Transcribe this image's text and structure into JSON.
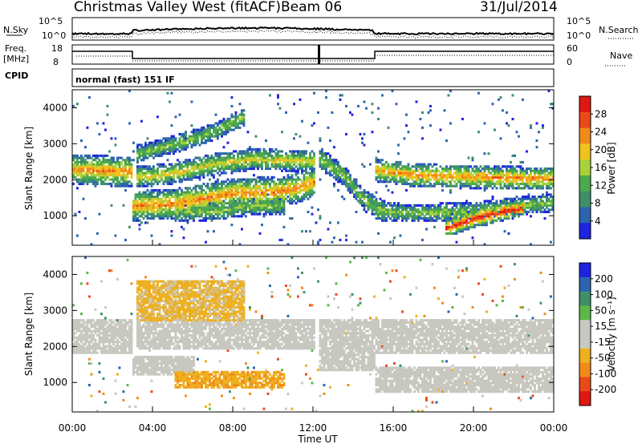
{
  "header": {
    "station": "Christmas Valley West (fitACF)",
    "beam": "Beam 06",
    "date": "31/Jul/2014"
  },
  "top_panels": {
    "nsky_label": "N.Sky",
    "nsearch_label": "N.Search",
    "noise_ticks_left": [
      "10^5",
      "10^0"
    ],
    "noise_ticks_right": [
      "10^5",
      "10^0"
    ],
    "freq_label_1": "Freq.",
    "freq_label_2": "[MHz]",
    "freq_ticks": [
      "18",
      "8"
    ],
    "nave_label": "Nave",
    "nave_ticks": [
      "60",
      "0"
    ],
    "cpid_label": "CPID",
    "cpid_text": "normal (fast) 151 IF"
  },
  "colors": {
    "power_scale": [
      "#1e24e0",
      "#2c64b0",
      "#3f8f6a",
      "#4caa4c",
      "#a8d23a",
      "#f2c21e",
      "#f08a1a",
      "#ea4a18",
      "#e01812"
    ],
    "velocity_scale": [
      "#1e24e0",
      "#2c64b0",
      "#3f8f6a",
      "#5ab848",
      "#c8c8c0",
      "#c8c8c0",
      "#eeb020",
      "#f08a1a",
      "#ea4a18",
      "#e01812"
    ]
  },
  "chart_data": [
    {
      "type": "heatmap",
      "panel": "power",
      "ylabel": "Slant Range [km]",
      "colorbar_label": "Power [dB]",
      "colorbar_ticks": [
        "28",
        "24",
        "20",
        "16",
        "12",
        "8",
        "4"
      ],
      "x_ticks": [
        "00:00",
        "04:00",
        "08:00",
        "12:00",
        "16:00",
        "20:00",
        "00:00"
      ],
      "y_ticks": [
        "4000",
        "3000",
        "2000",
        "1000"
      ],
      "xlim_hours": [
        0,
        24
      ],
      "ylim_km": [
        180,
        4500
      ],
      "clim": [
        0,
        30
      ],
      "bands": [
        {
          "t": [
            0,
            3,
            3,
            5,
            8,
            10.5,
            12
          ],
          "r": [
            2250,
            2200,
            1250,
            1300,
            1600,
            1650,
            1900
          ],
          "width_km": 420,
          "peak_db": 22
        },
        {
          "t": [
            3.2,
            5,
            7,
            9,
            11,
            12
          ],
          "r": [
            2050,
            2150,
            2400,
            2550,
            2500,
            2500
          ],
          "width_km": 300,
          "peak_db": 18
        },
        {
          "t": [
            3.2,
            5,
            7,
            8.5
          ],
          "r": [
            2700,
            2950,
            3300,
            3700
          ],
          "width_km": 250,
          "peak_db": 14
        },
        {
          "t": [
            5,
            7,
            9,
            10.5
          ],
          "r": [
            1050,
            1100,
            1250,
            1250
          ],
          "width_km": 250,
          "peak_db": 14
        },
        {
          "t": [
            12.2,
            13.5,
            14.5,
            15.5
          ],
          "r": [
            2600,
            2100,
            1400,
            1100
          ],
          "width_km": 300,
          "peak_db": 14
        },
        {
          "t": [
            15,
            17,
            20,
            24
          ],
          "r": [
            2250,
            2100,
            2050,
            2000
          ],
          "width_km": 320,
          "peak_db": 22
        },
        {
          "t": [
            15,
            17,
            20,
            24
          ],
          "r": [
            1100,
            1050,
            1100,
            1350
          ],
          "width_km": 250,
          "peak_db": 14
        },
        {
          "t": [
            18.5,
            20,
            21.5,
            22.5
          ],
          "r": [
            600,
            900,
            1100,
            1200
          ],
          "width_km": 250,
          "peak_db": 28
        }
      ]
    },
    {
      "type": "heatmap",
      "panel": "velocity",
      "ylabel": "Slant Range [km]",
      "colorbar_label": "Velocity [m s⁻¹]",
      "colorbar_ticks": [
        "200",
        "100",
        "50",
        "15",
        "-15",
        "-50",
        "-100",
        "-200"
      ],
      "x_ticks": [
        "00:00",
        "04:00",
        "08:00",
        "12:00",
        "16:00",
        "20:00",
        "00:00"
      ],
      "xlabel": "Time UT",
      "y_ticks": [
        "4000",
        "3000",
        "2000",
        "1000"
      ],
      "xlim_hours": [
        0,
        24
      ],
      "ylim_km": [
        180,
        4500
      ],
      "clim": [
        -250,
        250
      ],
      "regions": [
        {
          "t": [
            0,
            3
          ],
          "r": [
            1800,
            2700
          ],
          "v": 0
        },
        {
          "t": [
            3,
            6
          ],
          "r": [
            1200,
            1700
          ],
          "v": 0
        },
        {
          "t": [
            3.2,
            12
          ],
          "r": [
            1900,
            2700
          ],
          "v": 0
        },
        {
          "t": [
            3.2,
            8.5
          ],
          "r": [
            2700,
            3800
          ],
          "v": -60
        },
        {
          "t": [
            5,
            10.5
          ],
          "r": [
            800,
            1300
          ],
          "v": -90
        },
        {
          "t": [
            12.2,
            15
          ],
          "r": [
            1300,
            2700
          ],
          "v": 0
        },
        {
          "t": [
            15,
            24
          ],
          "r": [
            1800,
            2700
          ],
          "v": 0
        },
        {
          "t": [
            15,
            24
          ],
          "r": [
            700,
            1400
          ],
          "v": 0
        }
      ]
    }
  ]
}
